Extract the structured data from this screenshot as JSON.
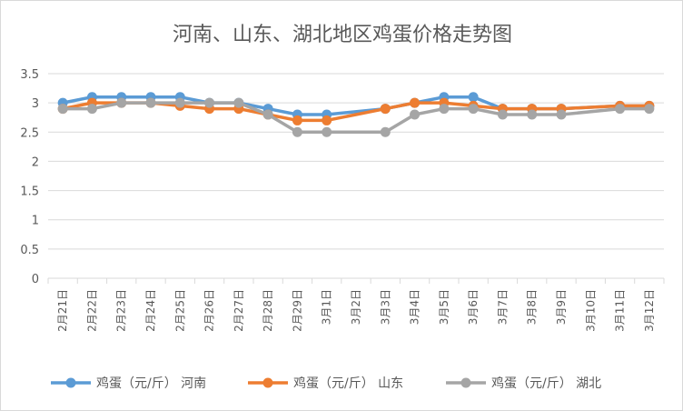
{
  "chart_data": {
    "type": "line",
    "title": "河南、山东、湖北地区鸡蛋价格走势图",
    "categories": [
      "2月21日",
      "2月22日",
      "2月23日",
      "2月24日",
      "2月25日",
      "2月26日",
      "2月27日",
      "2月28日",
      "2月29日",
      "3月1日",
      "3月2日",
      "3月3日",
      "3月4日",
      "3月5日",
      "3月6日",
      "3月7日",
      "3月8日",
      "3月9日",
      "3月10日",
      "3月11日",
      "3月12日"
    ],
    "y_ticks": [
      "0",
      "0.5",
      "1",
      "1.5",
      "2",
      "2.5",
      "3",
      "3.5"
    ],
    "ylim": [
      0,
      3.5
    ],
    "grid": true,
    "legend_position": "bottom",
    "series": [
      {
        "name": "鸡蛋（元/斤） 河南",
        "color": "#5b9bd5",
        "values": [
          3.0,
          3.1,
          3.1,
          3.1,
          3.1,
          3.0,
          3.0,
          2.9,
          2.8,
          2.8,
          null,
          2.9,
          3.0,
          3.1,
          3.1,
          2.9,
          2.9,
          2.9,
          null,
          2.95,
          2.95
        ]
      },
      {
        "name": "鸡蛋（元/斤） 山东",
        "color": "#ed7d31",
        "values": [
          2.9,
          3.0,
          3.0,
          3.0,
          2.95,
          2.9,
          2.9,
          2.8,
          2.7,
          2.7,
          null,
          2.9,
          3.0,
          3.0,
          2.95,
          2.9,
          2.9,
          2.9,
          null,
          2.95,
          2.95
        ]
      },
      {
        "name": "鸡蛋（元/斤） 湖北",
        "color": "#a5a5a5",
        "values": [
          2.9,
          2.9,
          3.0,
          3.0,
          3.0,
          3.0,
          3.0,
          2.8,
          2.5,
          2.5,
          null,
          2.5,
          2.8,
          2.9,
          2.9,
          2.8,
          2.8,
          2.8,
          null,
          2.9,
          2.9
        ]
      }
    ]
  }
}
